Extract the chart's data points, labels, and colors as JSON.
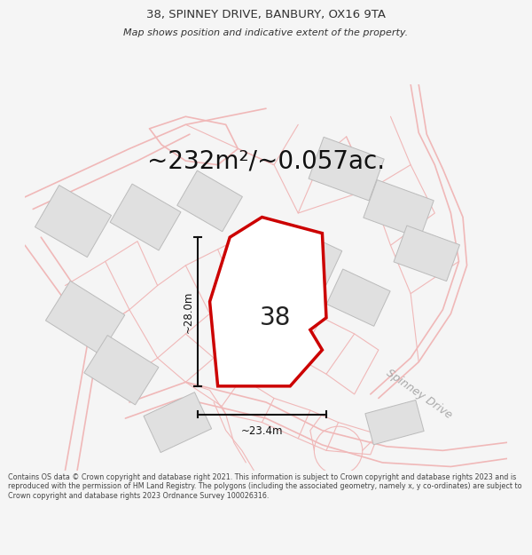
{
  "title_line1": "38, SPINNEY DRIVE, BANBURY, OX16 9TA",
  "title_line2": "Map shows position and indicative extent of the property.",
  "area_text": "~232m²/~0.057ac.",
  "label_38": "38",
  "dim_height": "~28.0m",
  "dim_width": "~23.4m",
  "street_label": "Spinney Drive",
  "footer_text": "Contains OS data © Crown copyright and database right 2021. This information is subject to Crown copyright and database rights 2023 and is reproduced with the permission of HM Land Registry. The polygons (including the associated geometry, namely x, y co-ordinates) are subject to Crown copyright and database rights 2023 Ordnance Survey 100026316.",
  "bg_color": "#f5f5f5",
  "map_bg": "#f8f8f8",
  "road_color": "#f0b8b8",
  "building_color": "#e0e0e0",
  "building_outline": "#bbbbbb",
  "plot_color": "#ffffff",
  "plot_outline": "#cc0000",
  "dim_line_color": "#111111",
  "text_color": "#333333",
  "title_color": "#333333",
  "footer_color": "#444444",
  "title_fontsize": 9.5,
  "subtitle_fontsize": 8.0,
  "area_fontsize": 20,
  "label_fontsize": 20,
  "dim_fontsize": 8.5,
  "street_fontsize": 9,
  "footer_fontsize": 5.8
}
